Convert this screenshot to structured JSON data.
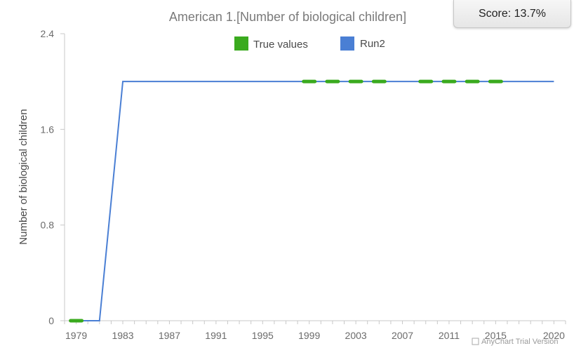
{
  "score": {
    "label": "Score: 13.7%"
  },
  "watermark": "AnyChart Trial Version",
  "colors": {
    "true_values": "#3aaa1e",
    "run2": "#4a7fd4",
    "axis": "#c8c8c8",
    "title": "#7a7a7a"
  },
  "chart_data": {
    "type": "line",
    "title": "American 1.[Number of biological children]",
    "xlabel": "",
    "ylabel": "Number of biological children",
    "xlim": [
      1978,
      2021
    ],
    "ylim": [
      0,
      2.4
    ],
    "y_ticks": [
      "0",
      "0.8",
      "1.6",
      "2.4"
    ],
    "x_ticks": [
      "1979",
      "1983",
      "1987",
      "1991",
      "1995",
      "1999",
      "2003",
      "2007",
      "2011",
      "2015",
      "2020"
    ],
    "legend": {
      "position": "top-center",
      "entries": [
        "True values",
        "Run2"
      ]
    },
    "grid": false,
    "series": [
      {
        "name": "True values",
        "style": "dashed-markers",
        "x": [
          1979,
          1999,
          2001,
          2003,
          2005,
          2009,
          2011,
          2013,
          2015
        ],
        "y": [
          0,
          2,
          2,
          2,
          2,
          2,
          2,
          2,
          2
        ]
      },
      {
        "name": "Run2",
        "style": "line",
        "x": [
          1979,
          1981,
          1983,
          2020
        ],
        "y": [
          0,
          0,
          2,
          2
        ]
      }
    ]
  }
}
